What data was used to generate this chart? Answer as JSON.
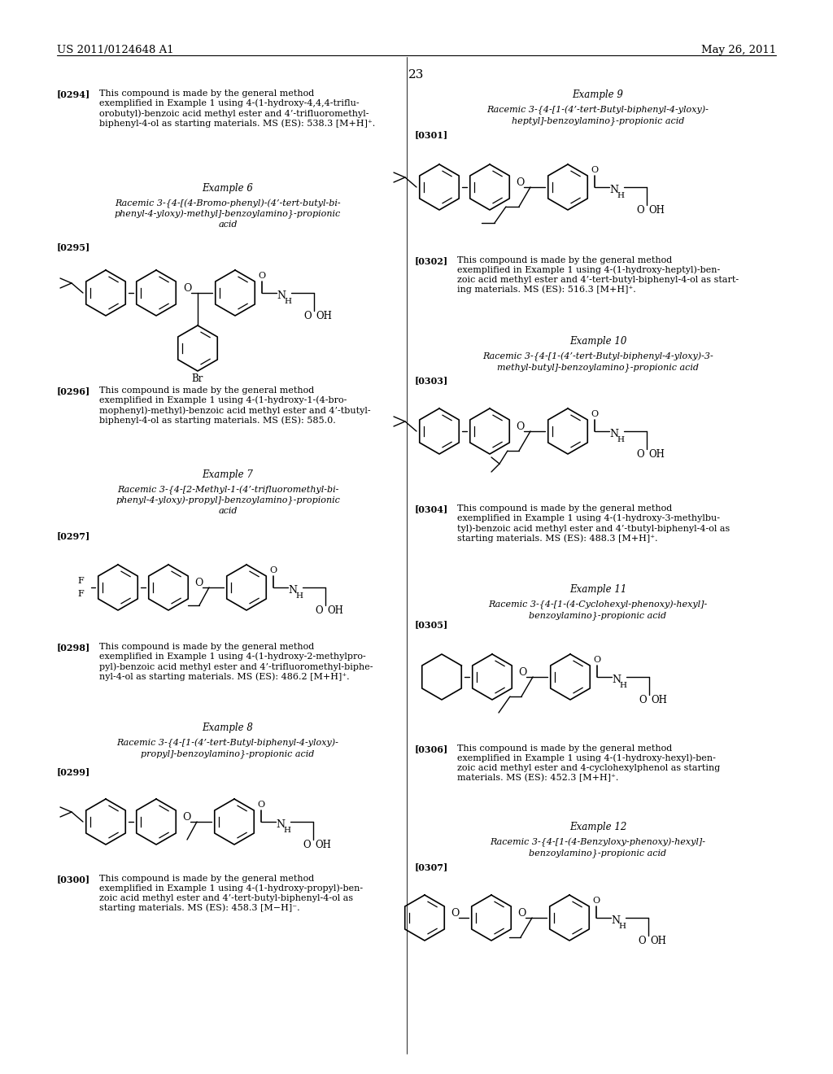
{
  "page_number": "23",
  "header_left": "US 2011/0124648 A1",
  "header_right": "May 26, 2011",
  "background_color": "#ffffff",
  "text_color": "#000000",
  "body_fs": 8.0,
  "label_fs": 8.0,
  "example_title_fs": 8.5,
  "fig_width": 10.24,
  "fig_height": 13.2,
  "fig_dpi": 100
}
